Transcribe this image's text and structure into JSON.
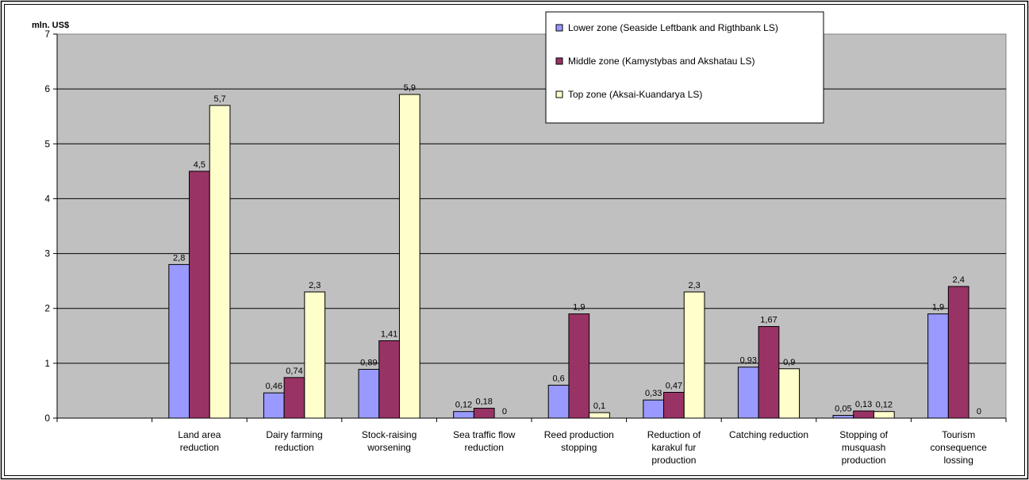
{
  "chart_data": {
    "type": "bar",
    "ylabel": "mln. US$",
    "ylim": [
      0,
      7
    ],
    "yticks": [
      0,
      1,
      2,
      3,
      4,
      5,
      6,
      7
    ],
    "grid": true,
    "legend_position": "top-right",
    "categories": [
      "",
      "Land area reduction",
      "Dairy farming reduction",
      "Stock-raising worsening",
      "Sea traffic flow reduction",
      "Reed production stopping",
      "Reduction of karakul fur production",
      "Catching reduction",
      "Stopping of musquash production",
      "Tourism consequence lossing"
    ],
    "category_lines": [
      [
        ""
      ],
      [
        "Land area",
        "reduction"
      ],
      [
        "Dairy farming",
        "reduction"
      ],
      [
        "Stock-raising",
        "worsening"
      ],
      [
        "Sea traffic flow",
        "reduction"
      ],
      [
        "Reed production",
        "stopping"
      ],
      [
        "Reduction of",
        "karakul fur",
        "production"
      ],
      [
        "Catching reduction"
      ],
      [
        "Stopping of",
        "musquash",
        "production"
      ],
      [
        "Tourism",
        "consequence",
        "lossing"
      ]
    ],
    "series": [
      {
        "name": "Lower zone (Seaside Leftbank and Rigthbank LS)",
        "color": "#9999ff",
        "values": [
          null,
          2.8,
          0.46,
          0.89,
          0.12,
          0.6,
          0.33,
          0.93,
          0.05,
          1.9
        ],
        "labels": [
          "",
          "2,8",
          "0,46",
          "0,89",
          "0,12",
          "0,6",
          "0,33",
          "0,93",
          "0,05",
          "1,9"
        ]
      },
      {
        "name": "Middle zone (Kamystybas and Akshatau LS)",
        "color": "#993366",
        "values": [
          null,
          4.5,
          0.74,
          1.41,
          0.18,
          1.9,
          0.47,
          1.67,
          0.13,
          2.4
        ],
        "labels": [
          "",
          "4,5",
          "0,74",
          "1,41",
          "0,18",
          "1,9",
          "0,47",
          "1,67",
          "0,13",
          "2,4"
        ]
      },
      {
        "name": "Top zone (Aksai-Kuandarya LS)",
        "color": "#ffffcc",
        "values": [
          null,
          5.7,
          2.3,
          5.9,
          0,
          0.1,
          2.3,
          0.9,
          0.12,
          0
        ],
        "labels": [
          "",
          "5,7",
          "2,3",
          "5,9",
          "0",
          "0,1",
          "2,3",
          "0,9",
          "0,12",
          "0"
        ]
      }
    ]
  }
}
